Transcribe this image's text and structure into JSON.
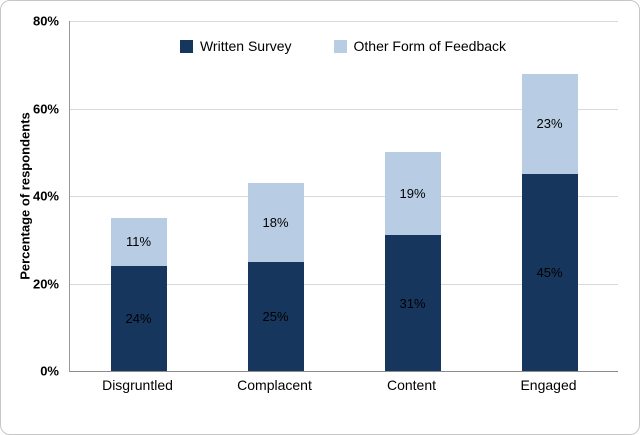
{
  "chart_data": {
    "type": "bar",
    "stacked": true,
    "title": "",
    "xlabel": "",
    "ylabel": "Percentage of respondents",
    "ymax": 80,
    "ytick_step": 20,
    "yticks": [
      "0%",
      "20%",
      "40%",
      "60%",
      "80%"
    ],
    "grid": true,
    "legend_position": "top-inside",
    "categories": [
      "Disgruntled",
      "Complacent",
      "Content",
      "Engaged"
    ],
    "series": [
      {
        "name": "Written Survey",
        "color": "#17365D",
        "values": [
          24,
          25,
          31,
          45
        ],
        "labels": [
          "24%",
          "25%",
          "31%",
          "45%"
        ]
      },
      {
        "name": "Other Form of Feedback",
        "color": "#B8CCE4",
        "values": [
          11,
          18,
          19,
          23
        ],
        "labels": [
          "11%",
          "18%",
          "19%",
          "23%"
        ]
      }
    ]
  },
  "colors": {
    "gridline": "#D9D9D9",
    "axis_line": "#8C8C8C",
    "frame_border": "#C6C6C6",
    "data_label_text": "#000000"
  }
}
